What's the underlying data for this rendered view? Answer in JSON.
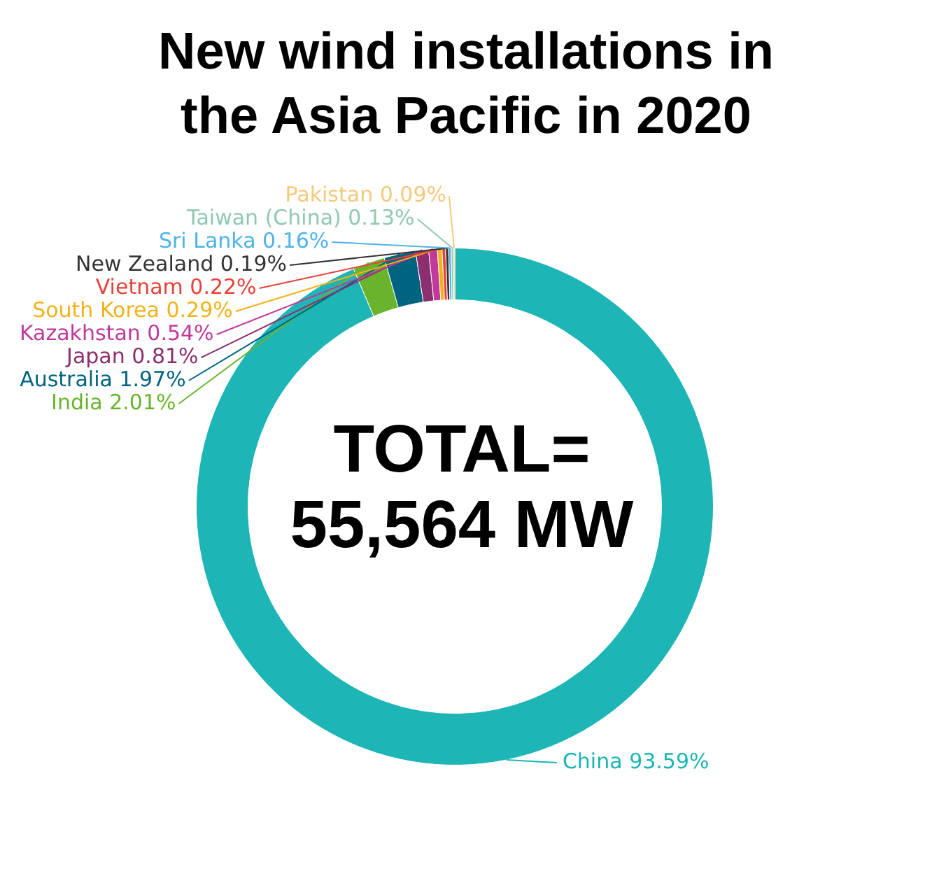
{
  "chart_data": {
    "type": "donut",
    "title": "New wind installations in the Asia Pacific in 2020",
    "categories": [
      "China",
      "India",
      "Australia",
      "Japan",
      "Kazakhstan",
      "South Korea",
      "Vietnam",
      "New Zealand",
      "Sri Lanka",
      "Taiwan (China)",
      "Pakistan"
    ],
    "values": [
      93.59,
      2.01,
      1.97,
      0.81,
      0.54,
      0.29,
      0.22,
      0.19,
      0.16,
      0.13,
      0.09
    ],
    "colors": [
      "#1db5b5",
      "#6ab42d",
      "#006480",
      "#8b2f6e",
      "#c0399b",
      "#f2b21a",
      "#e8423a",
      "#333333",
      "#4db3e6",
      "#8fc9b0",
      "#f5c97a"
    ],
    "value_labels": [
      "93.59%",
      "2.01%",
      "1.97%",
      "0.81%",
      "0.54%",
      "0.29%",
      "0.22%",
      "0.19%",
      "0.16%",
      "0.13%",
      "0.09%"
    ],
    "annotations": [
      "TOTAL= 55,564 MW"
    ],
    "legend": false
  }
}
